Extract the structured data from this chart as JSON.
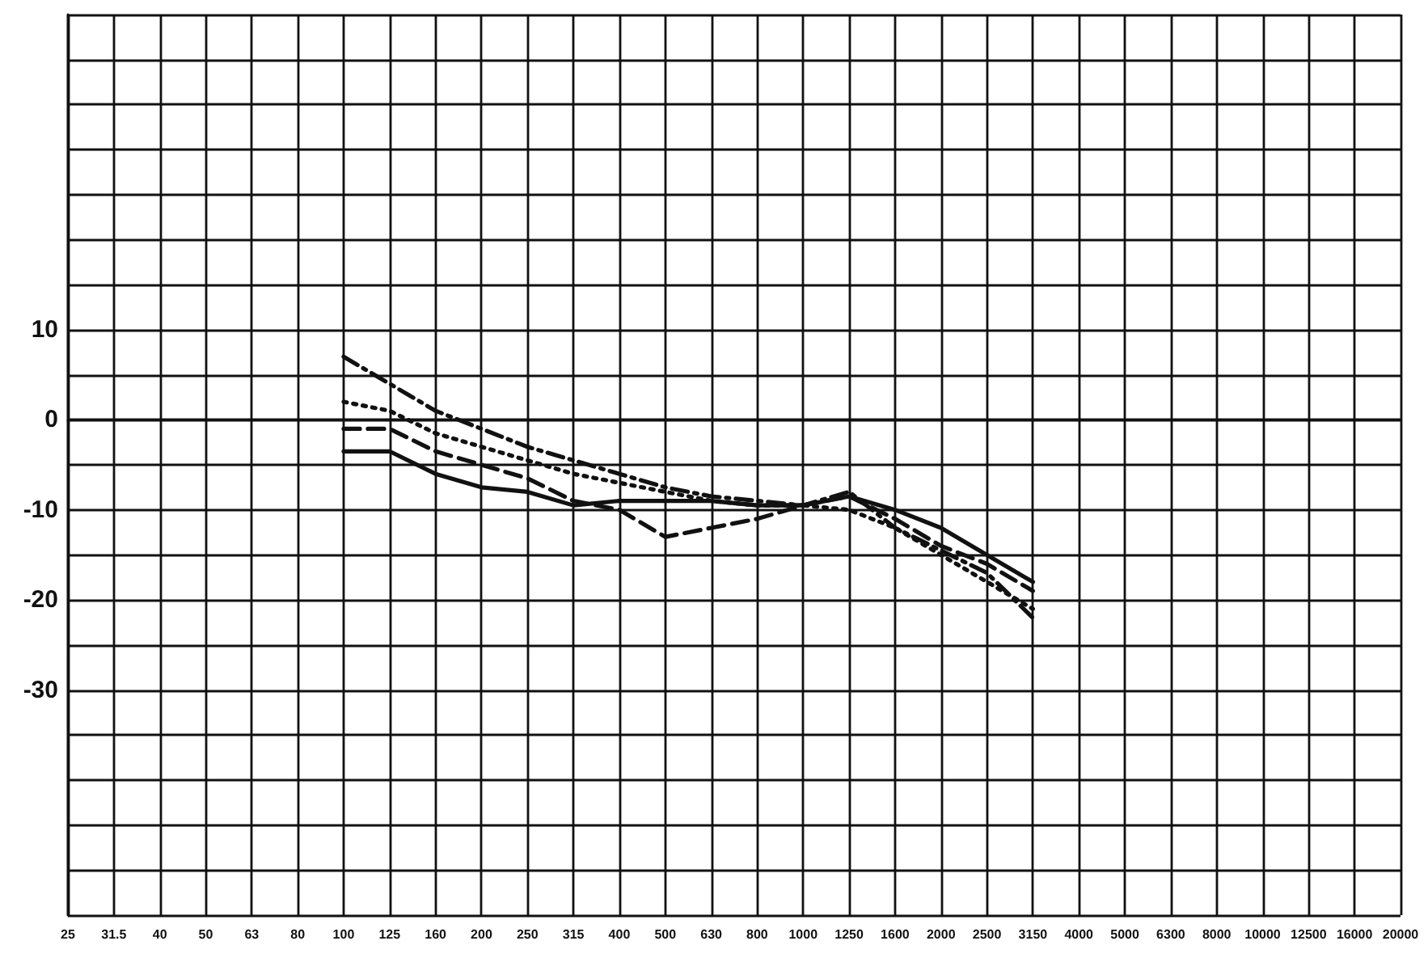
{
  "chart_data": {
    "type": "line",
    "categories": [
      "25",
      "31.5",
      "40",
      "50",
      "63",
      "80",
      "100",
      "125",
      "160",
      "200",
      "250",
      "315",
      "400",
      "500",
      "630",
      "800",
      "1000",
      "1250",
      "1600",
      "2000",
      "2500",
      "3150",
      "4000",
      "5000",
      "6300",
      "8000",
      "10000",
      "12500",
      "16000",
      "20000"
    ],
    "series": [
      {
        "color": "#111111",
        "line_style": "solid",
        "values": [
          null,
          null,
          null,
          null,
          null,
          null,
          -3.5,
          -3.5,
          -6,
          -7.5,
          -8,
          -9.5,
          -9,
          -9,
          -9,
          -9.5,
          -9.5,
          -8.5,
          -10,
          -12,
          -15,
          -18,
          null,
          null,
          null,
          null,
          null,
          null,
          null,
          null
        ]
      },
      {
        "color": "#111111",
        "line_style": "dashed",
        "values": [
          null,
          null,
          null,
          null,
          null,
          null,
          -1,
          -1,
          -3.5,
          -5,
          -6.5,
          -9,
          -10,
          -13,
          -12,
          -11,
          -9.5,
          -8.5,
          -11,
          -14,
          -16,
          -19,
          null,
          null,
          null,
          null,
          null,
          null,
          null,
          null
        ]
      },
      {
        "color": "#111111",
        "line_style": "dotted",
        "values": [
          null,
          null,
          null,
          null,
          null,
          null,
          2,
          1,
          -1.5,
          -3,
          -4.5,
          -6,
          -7,
          -8,
          -9,
          -9.5,
          -9.5,
          -10,
          -12,
          -15,
          -18,
          -21,
          null,
          null,
          null,
          null,
          null,
          null,
          null,
          null
        ]
      },
      {
        "color": "#111111",
        "line_style": "dashdot",
        "values": [
          null,
          null,
          null,
          null,
          null,
          null,
          7,
          4,
          1,
          -1,
          -3,
          -4.5,
          -6,
          -7.5,
          -8.5,
          -9,
          -9.5,
          -8,
          -12,
          -14.5,
          -17,
          -22,
          null,
          null,
          null,
          null,
          null,
          null,
          null,
          null
        ]
      }
    ],
    "ylim": [
      -55,
      45
    ],
    "yticks": [
      {
        "value": -55,
        "label": null
      },
      {
        "value": -50,
        "label": null
      },
      {
        "value": -45,
        "label": null
      },
      {
        "value": -40,
        "label": null
      },
      {
        "value": -35,
        "label": null
      },
      -30,
      {
        "value": -25,
        "label": null
      },
      -20,
      {
        "value": -15,
        "label": null
      },
      -10,
      {
        "value": -5,
        "label": null
      },
      0,
      {
        "value": 5,
        "label": null
      },
      10,
      {
        "value": 15,
        "label": null
      },
      {
        "value": 20,
        "label": null
      },
      {
        "value": 25,
        "label": null
      },
      {
        "value": 30,
        "label": null
      },
      {
        "value": 35,
        "label": null
      },
      {
        "value": 40,
        "label": null
      },
      {
        "value": 45,
        "label": null
      }
    ],
    "grid": true,
    "marker": "none"
  }
}
